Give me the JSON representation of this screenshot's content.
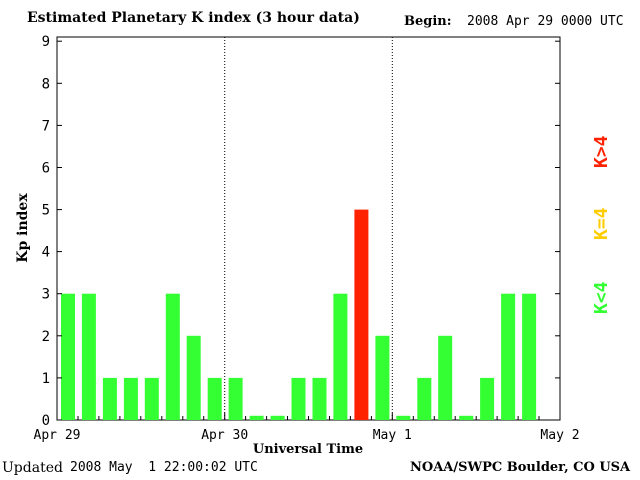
{
  "header": {
    "title": "Estimated Planetary K index (3 hour data)",
    "begin_label": "Begin:",
    "begin_value": "2008 Apr 29 0000 UTC"
  },
  "footer": {
    "updated_label": "Updated",
    "updated_value": "2008 May  1 22:00:02 UTC",
    "source": "NOAA/SWPC Boulder, CO USA"
  },
  "legend": {
    "high": "K>4",
    "equal": "K=4",
    "low": "K<4"
  },
  "colors": {
    "low": "#33ff33",
    "equal": "#ffcc00",
    "high": "#ff2200",
    "axis": "#000000",
    "background": "#ffffff"
  },
  "chart_data": {
    "type": "bar",
    "title": "Estimated Planetary K index (3 hour data)",
    "xlabel": "Universal Time",
    "ylabel": "Kp index",
    "ylim": [
      0,
      9
    ],
    "yticks": [
      0,
      1,
      2,
      3,
      4,
      5,
      6,
      7,
      8,
      9
    ],
    "interval_hours": 3,
    "x_tick_labels": [
      "Apr 29",
      "Apr 30",
      "May 1",
      "May 2"
    ],
    "day_separators": [
      "Apr 30",
      "May 1"
    ],
    "values": [
      3,
      3,
      1,
      1,
      1,
      3,
      2,
      1,
      1,
      0.1,
      0.1,
      1,
      1,
      3,
      5,
      2,
      0.1,
      1,
      2,
      0.1,
      1,
      3,
      3
    ],
    "total_slots": 24,
    "grid": false
  }
}
